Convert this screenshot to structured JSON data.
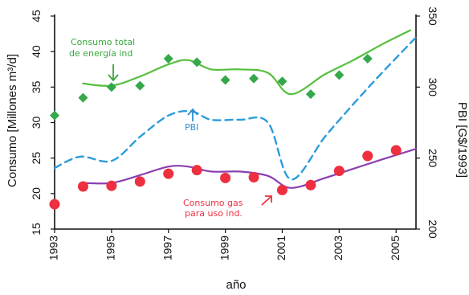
{
  "chart_data": {
    "type": "line",
    "title": "",
    "xlabel": "año",
    "ylabel_left": "Consumo [Millones m³/d]",
    "ylabel_right": "PBI [G$/1993]",
    "xlim": [
      1993,
      2005.7
    ],
    "ylim_left": [
      15,
      45
    ],
    "ylim_right": [
      200,
      350
    ],
    "x_ticks": [
      "1993",
      "1995",
      "1997",
      "1999",
      "2001",
      "2003",
      "2005"
    ],
    "y_ticks_left": [
      "15",
      "20",
      "25",
      "30",
      "35",
      "40",
      "45"
    ],
    "y_ticks_right": [
      "200",
      "250",
      "300",
      "350"
    ],
    "grid": false,
    "series": [
      {
        "name": "Consumo total de energía ind",
        "axis": "left",
        "color": "#55c03c",
        "style": "solid",
        "x": [
          1994,
          1995,
          1996,
          1997,
          1997.7,
          1998.5,
          1999.5,
          2000.5,
          2001.3,
          2002.5,
          2003.5,
          2004.5,
          2005.5
        ],
        "y": [
          35.5,
          35.2,
          36.5,
          38.2,
          38.8,
          37.5,
          37.5,
          37.0,
          34.0,
          36.8,
          38.8,
          41.0,
          43.0
        ]
      },
      {
        "name": "Consumo total de energía ind (datos)",
        "axis": "left",
        "color": "#34a84a",
        "style": "markers",
        "x": [
          1993,
          1994,
          1995,
          1996,
          1997,
          1998,
          1999,
          2000,
          2001,
          2002,
          2003,
          2004
        ],
        "y": [
          31,
          33.5,
          35,
          35.2,
          39,
          38.5,
          36,
          36.2,
          35.8,
          34,
          36.7,
          39
        ]
      },
      {
        "name": "PBI",
        "axis": "right",
        "color": "#2d9cdb",
        "style": "dashed",
        "x": [
          1993,
          1993.9,
          1995,
          1996,
          1997,
          1997.8,
          1998.5,
          1999.5,
          2000.5,
          2001.3,
          2002.5,
          2003.5,
          2004.5,
          2005.7
        ],
        "y": [
          243,
          251,
          248,
          265,
          280,
          283,
          277,
          277,
          275,
          235,
          265,
          288,
          310,
          335
        ]
      },
      {
        "name": "Consumo gas para uso ind",
        "axis": "left",
        "color": "#8a3fb0",
        "style": "solid",
        "x": [
          1994,
          1995,
          1996,
          1997,
          1997.7,
          1998.5,
          1999.5,
          2000.5,
          2001.3,
          2002.5,
          2003.5,
          2004.5,
          2005.7
        ],
        "y": [
          21.5,
          21.5,
          22.6,
          23.8,
          23.8,
          23.1,
          23.1,
          22.5,
          20.8,
          22.2,
          23.5,
          24.8,
          26.3
        ]
      },
      {
        "name": "Consumo gas para uso ind (datos)",
        "axis": "left",
        "color": "#ee2f3f",
        "style": "markers",
        "x": [
          1993,
          1994,
          1995,
          1996,
          1997,
          1998,
          1999,
          2000,
          2001,
          2002,
          2003,
          2004,
          2005
        ],
        "y": [
          18.5,
          21,
          21.1,
          21.7,
          22.8,
          23.3,
          22.2,
          22.3,
          20.5,
          21.2,
          23.2,
          25.3,
          26.1
        ]
      }
    ],
    "annotations": [
      {
        "text": "Consumo total",
        "color": "#38a83a"
      },
      {
        "text": "de energía ind",
        "color": "#38a83a"
      },
      {
        "text": "PBI",
        "color": "#2d8fd0"
      },
      {
        "text": "Consumo gas",
        "color": "#ee2f3f"
      },
      {
        "text": "para uso ind.",
        "color": "#ee2f3f"
      }
    ]
  }
}
